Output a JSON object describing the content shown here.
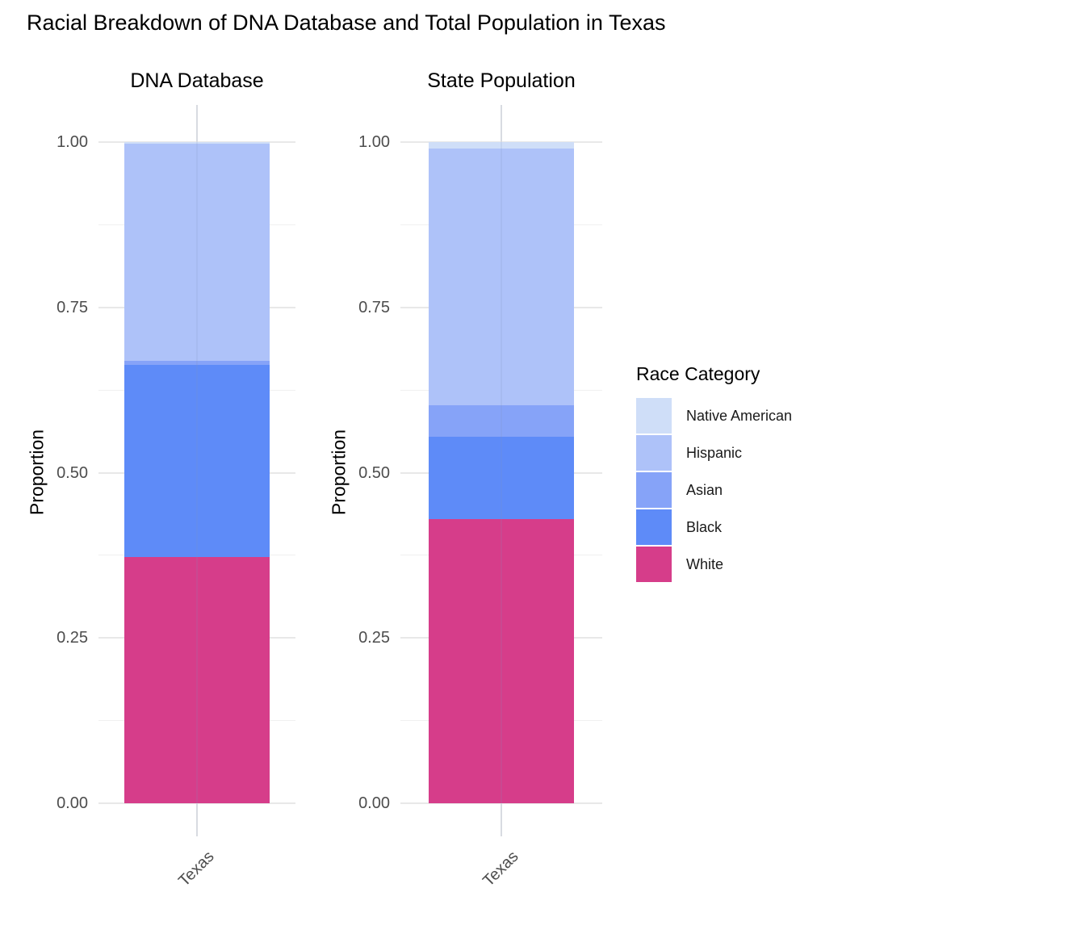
{
  "title": "Racial Breakdown of DNA Database and Total Population in Texas",
  "colors": {
    "native_american": "#cfdef8",
    "hispanic": "#aec2f9",
    "asian": "#86a3f8",
    "black": "#5e8bf8",
    "white": "#d63d8a",
    "grid_major": "#e8e8e8",
    "grid_minor": "#f0f0f0",
    "tick_label": "#4d4d4d"
  },
  "legend": {
    "title": "Race Category",
    "items": [
      {
        "label": "Native American",
        "color": "native_american"
      },
      {
        "label": "Hispanic",
        "color": "hispanic"
      },
      {
        "label": "Asian",
        "color": "asian"
      },
      {
        "label": "Black",
        "color": "black"
      },
      {
        "label": "White",
        "color": "white"
      }
    ]
  },
  "chart_data": [
    {
      "type": "bar",
      "stacked": true,
      "title": "DNA Database",
      "categories": [
        "Texas"
      ],
      "xlabel": "",
      "ylabel": "Proportion",
      "ylim": [
        0,
        1
      ],
      "grid": true,
      "yticks": [
        {
          "value": 0.0,
          "label": "0.00"
        },
        {
          "value": 0.25,
          "label": "0.25"
        },
        {
          "value": 0.5,
          "label": "0.50"
        },
        {
          "value": 0.75,
          "label": "0.75"
        },
        {
          "value": 1.0,
          "label": "1.00"
        }
      ],
      "yticks_minor": [
        0.125,
        0.375,
        0.625,
        0.875
      ],
      "series": [
        {
          "name": "White",
          "color": "white",
          "values": [
            0.372
          ]
        },
        {
          "name": "Black",
          "color": "black",
          "values": [
            0.291
          ]
        },
        {
          "name": "Asian",
          "color": "asian",
          "values": [
            0.006
          ]
        },
        {
          "name": "Hispanic",
          "color": "hispanic",
          "values": [
            0.329
          ]
        },
        {
          "name": "Native American",
          "color": "native_american",
          "values": [
            0.002
          ]
        }
      ]
    },
    {
      "type": "bar",
      "stacked": true,
      "title": "State Population",
      "categories": [
        "Texas"
      ],
      "xlabel": "",
      "ylabel": "Proportion",
      "ylim": [
        0,
        1
      ],
      "grid": true,
      "yticks": [
        {
          "value": 0.0,
          "label": "0.00"
        },
        {
          "value": 0.25,
          "label": "0.25"
        },
        {
          "value": 0.5,
          "label": "0.50"
        },
        {
          "value": 0.75,
          "label": "0.75"
        },
        {
          "value": 1.0,
          "label": "1.00"
        }
      ],
      "yticks_minor": [
        0.125,
        0.375,
        0.625,
        0.875
      ],
      "series": [
        {
          "name": "White",
          "color": "white",
          "values": [
            0.43
          ]
        },
        {
          "name": "Black",
          "color": "black",
          "values": [
            0.124
          ]
        },
        {
          "name": "Asian",
          "color": "asian",
          "values": [
            0.048
          ]
        },
        {
          "name": "Hispanic",
          "color": "hispanic",
          "values": [
            0.388
          ]
        },
        {
          "name": "Native American",
          "color": "native_american",
          "values": [
            0.01
          ]
        }
      ]
    }
  ]
}
